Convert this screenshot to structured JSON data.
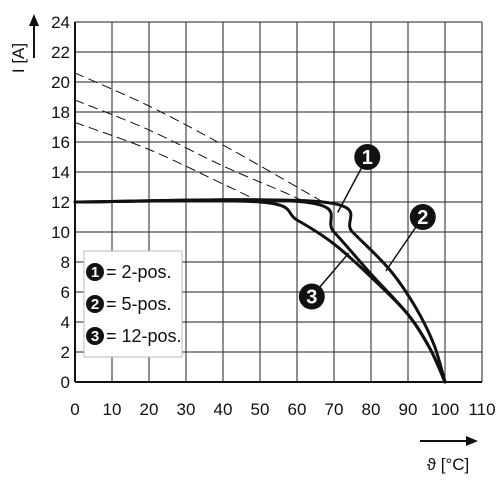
{
  "chart_data": {
    "type": "line",
    "xlabel": "ϑ [°C]",
    "ylabel": "I [A]",
    "xlim": [
      0,
      110
    ],
    "ylim": [
      0,
      24
    ],
    "x_ticks": [
      "0",
      "10",
      "20",
      "30",
      "40",
      "50",
      "60",
      "70",
      "80",
      "90",
      "100",
      "110"
    ],
    "y_ticks": [
      "0",
      "2",
      "4",
      "6",
      "8",
      "10",
      "12",
      "14",
      "16",
      "18",
      "20",
      "22",
      "24"
    ],
    "grid": true,
    "legend_position": "bottom-left",
    "legend": [
      {
        "badge": "1",
        "label": "= 2-pos."
      },
      {
        "badge": "2",
        "label": "= 5-pos."
      },
      {
        "badge": "3",
        "label": "= 12-pos."
      }
    ],
    "series": [
      {
        "badge": "1",
        "style": "solid",
        "x": [
          0,
          67,
          75,
          85,
          92,
          97,
          100
        ],
        "y": [
          12,
          12,
          10,
          7.5,
          5,
          2.5,
          0
        ]
      },
      {
        "badge": "2",
        "style": "solid",
        "x": [
          0,
          62,
          70,
          80,
          90,
          96,
          100
        ],
        "y": [
          12,
          12,
          10,
          7.2,
          4.5,
          2.2,
          0
        ]
      },
      {
        "badge": "3",
        "style": "solid",
        "x": [
          0,
          50,
          60,
          70,
          80,
          90,
          96,
          100
        ],
        "y": [
          12,
          12,
          10.8,
          9.2,
          7,
          4.5,
          2.2,
          0
        ]
      },
      {
        "badge": "1",
        "style": "dashed",
        "x": [
          0,
          20,
          40,
          60,
          67
        ],
        "y": [
          20.6,
          18.4,
          15.8,
          13,
          12
        ]
      },
      {
        "badge": "2",
        "style": "dashed",
        "x": [
          0,
          20,
          40,
          57,
          62
        ],
        "y": [
          18.8,
          16.8,
          14.4,
          12.6,
          12
        ]
      },
      {
        "badge": "3",
        "style": "dashed",
        "x": [
          0,
          20,
          40,
          50
        ],
        "y": [
          17.3,
          15.5,
          13.2,
          12
        ]
      }
    ],
    "annotations": [
      {
        "badge": "1",
        "x": 79,
        "y": 15.0,
        "target_x": 71,
        "target_y": 11.3
      },
      {
        "badge": "2",
        "x": 94,
        "y": 11.0,
        "target_x": 84,
        "target_y": 7.4
      },
      {
        "badge": "3",
        "x": 64,
        "y": 5.7,
        "target_x": 74,
        "target_y": 8.6
      }
    ]
  }
}
